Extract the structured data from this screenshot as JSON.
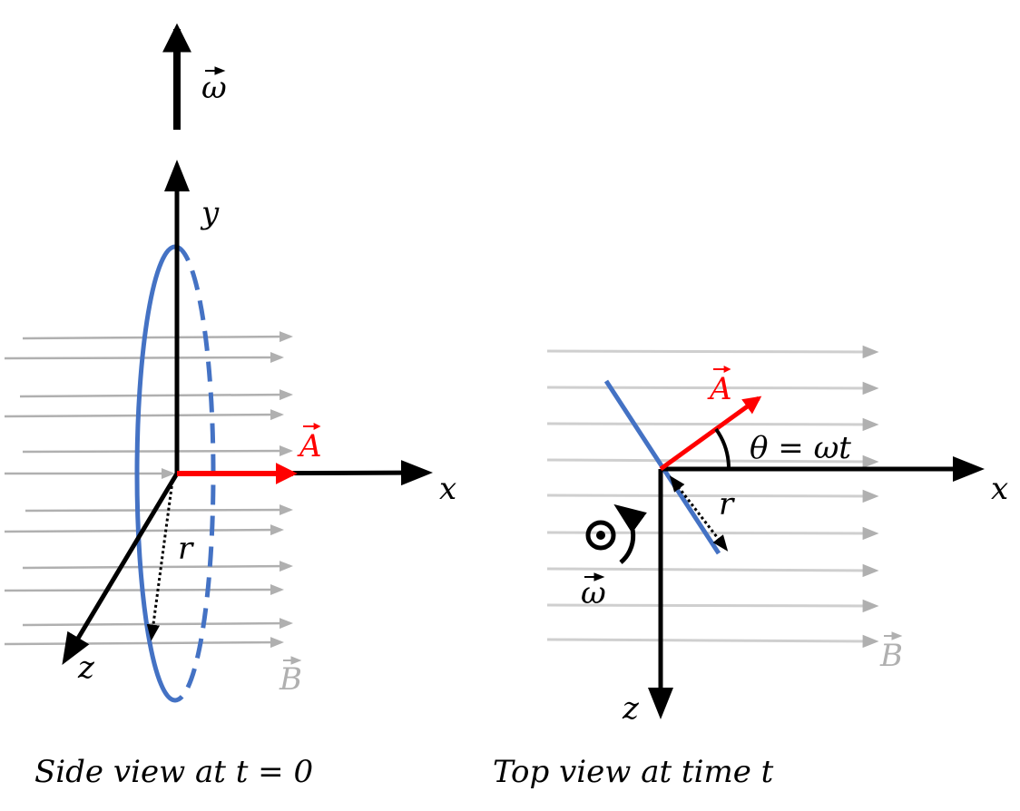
{
  "side_view": {
    "caption": "Side view at t = 0",
    "labels": {
      "omega": "ω",
      "y": "y",
      "A": "A",
      "x": "x",
      "r": "r",
      "z": "z",
      "B": "B"
    }
  },
  "top_view": {
    "caption": "Top view at time t",
    "labels": {
      "A": "A",
      "angle": "θ = ωt",
      "x": "x",
      "r": "r",
      "omega": "ω",
      "z": "z",
      "B": "B"
    }
  }
}
